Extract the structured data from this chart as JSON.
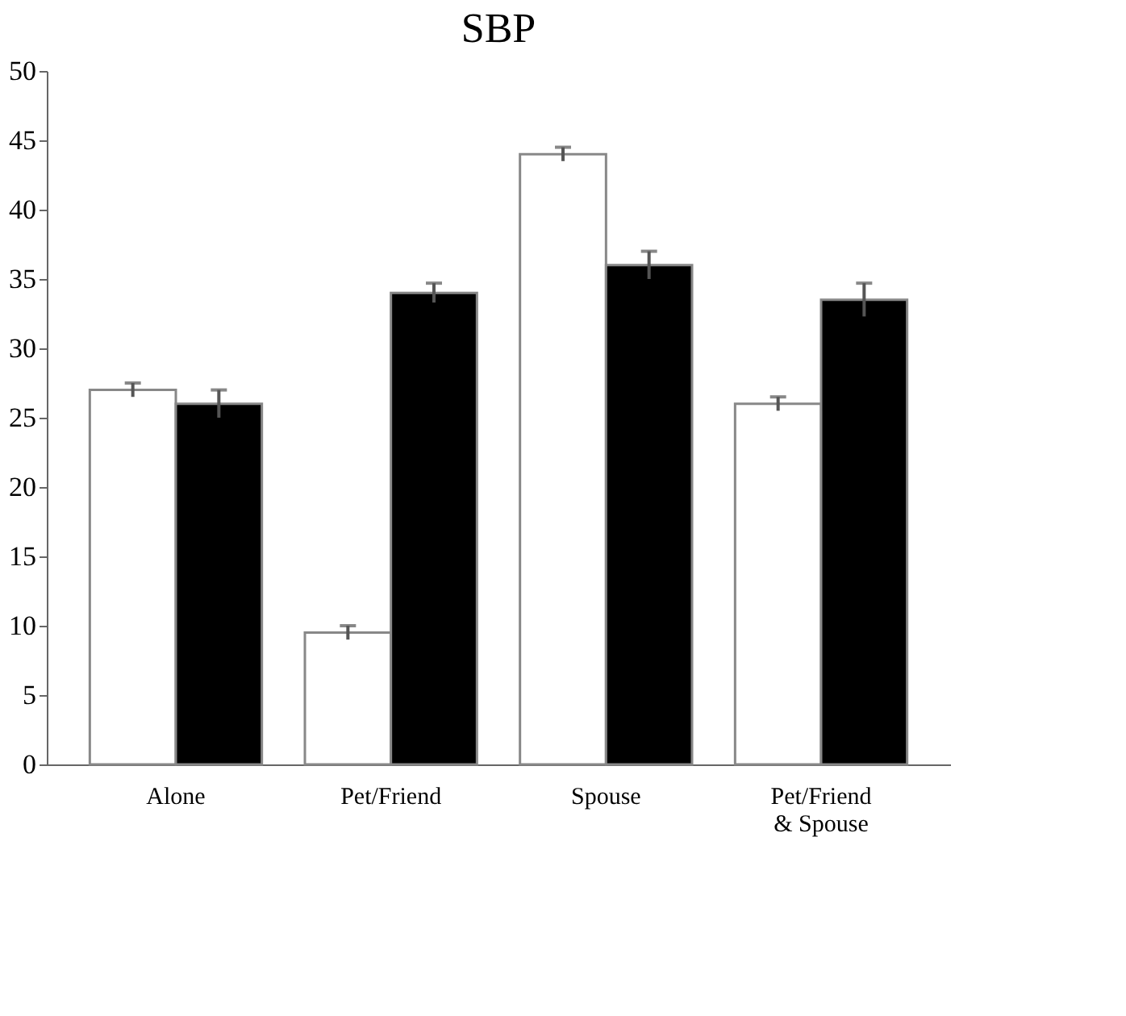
{
  "chart_data": {
    "type": "bar",
    "title": "SBP",
    "categories": [
      "Alone",
      "Pet/Friend",
      "Spouse",
      "Pet/Friend\n& Spouse"
    ],
    "series": [
      {
        "color": "#ffffff",
        "values": [
          27,
          9.5,
          44,
          26
        ],
        "errors": [
          0.5,
          0.5,
          0.5,
          0.5
        ]
      },
      {
        "color": "#000000",
        "values": [
          26,
          34,
          36,
          33.5
        ],
        "errors": [
          1,
          0.7,
          1,
          1.2
        ]
      }
    ],
    "ylim": [
      0,
      50
    ],
    "yticks": [
      0,
      5,
      10,
      15,
      20,
      25,
      30,
      35,
      40,
      45,
      50
    ],
    "grid": false,
    "legend": false
  }
}
